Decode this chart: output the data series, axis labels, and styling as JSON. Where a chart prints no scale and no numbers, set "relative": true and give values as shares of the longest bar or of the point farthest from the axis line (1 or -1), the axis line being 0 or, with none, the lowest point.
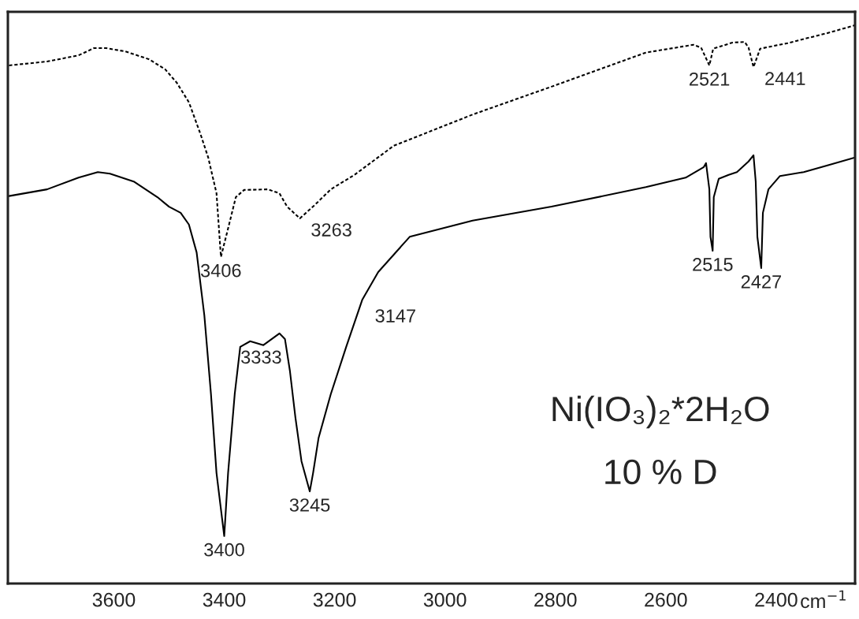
{
  "chart_data": {
    "type": "line",
    "relative": true,
    "xlabel": "cm$^{−1}$",
    "xlim": [
      3792,
      2257
    ],
    "xticks": [
      3600,
      3400,
      3200,
      3000,
      2800,
      2600,
      2400
    ],
    "grid": false,
    "marker": "none",
    "series": [
      {
        "color": "#000000",
        "line_style": "dotted",
        "x": [
          3790,
          3721,
          3664,
          3636,
          3614,
          3579,
          3536,
          3507,
          3486,
          3464,
          3443,
          3429,
          3414,
          3406,
          3393,
          3379,
          3364,
          3321,
          3300,
          3286,
          3263,
          3236,
          3207,
          3164,
          3093,
          2950,
          2807,
          2636,
          2550,
          2536,
          2521,
          2514,
          2479,
          2457,
          2450,
          2441,
          2429,
          2379,
          2307,
          2257
        ],
        "values": [
          0.928,
          0.935,
          0.946,
          0.959,
          0.959,
          0.953,
          0.939,
          0.921,
          0.897,
          0.862,
          0.805,
          0.763,
          0.699,
          0.585,
          0.636,
          0.692,
          0.705,
          0.706,
          0.699,
          0.675,
          0.654,
          0.678,
          0.706,
          0.732,
          0.784,
          0.84,
          0.89,
          0.951,
          0.965,
          0.96,
          0.928,
          0.958,
          0.969,
          0.97,
          0.96,
          0.925,
          0.958,
          0.968,
          0.986,
          1
        ]
      },
      {
        "color": "#000000",
        "line_style": "solid",
        "x": [
          3790,
          3721,
          3664,
          3629,
          3607,
          3564,
          3521,
          3500,
          3479,
          3464,
          3450,
          3436,
          3424,
          3414,
          3400,
          3393,
          3381,
          3371,
          3353,
          3329,
          3300,
          3290,
          3281,
          3271,
          3260,
          3245,
          3239,
          3229,
          3207,
          3179,
          3150,
          3121,
          3064,
          2950,
          2807,
          2636,
          2564,
          2531,
          2527,
          2521,
          2519,
          2515,
          2513,
          2504,
          2486,
          2471,
          2450,
          2441,
          2437,
          2434,
          2427,
          2424,
          2414,
          2393,
          2350,
          2307,
          2257
        ],
        "values": [
          0.694,
          0.706,
          0.727,
          0.737,
          0.734,
          0.72,
          0.692,
          0.675,
          0.664,
          0.643,
          0.593,
          0.48,
          0.339,
          0.198,
          0.085,
          0.198,
          0.339,
          0.424,
          0.434,
          0.427,
          0.448,
          0.438,
          0.381,
          0.297,
          0.219,
          0.165,
          0.198,
          0.261,
          0.339,
          0.424,
          0.508,
          0.558,
          0.621,
          0.65,
          0.675,
          0.71,
          0.727,
          0.746,
          0.753,
          0.706,
          0.621,
          0.596,
          0.692,
          0.725,
          0.732,
          0.737,
          0.756,
          0.767,
          0.72,
          0.621,
          0.565,
          0.664,
          0.706,
          0.73,
          0.737,
          0.749,
          0.763
        ]
      }
    ],
    "annotations": [
      {
        "text": "3406",
        "x": 3406,
        "y": 0.585
      },
      {
        "text": "3263",
        "x": 3263,
        "y": 0.654
      },
      {
        "text": "2521",
        "x": 2521,
        "y": 0.928
      },
      {
        "text": "2441",
        "x": 2441,
        "y": 0.925
      },
      {
        "text": "3400",
        "x": 3400,
        "y": 0.085
      },
      {
        "text": "3333",
        "x": 3333,
        "y": 0.43
      },
      {
        "text": "3245",
        "x": 3245,
        "y": 0.165
      },
      {
        "text": "3147",
        "x": 3147,
        "y": 0.5
      },
      {
        "text": "2515",
        "x": 2515,
        "y": 0.596
      },
      {
        "text": "2427",
        "x": 2427,
        "y": 0.565
      },
      "Ni(IO₃)₂*2H₂O",
      "10 % D"
    ]
  }
}
